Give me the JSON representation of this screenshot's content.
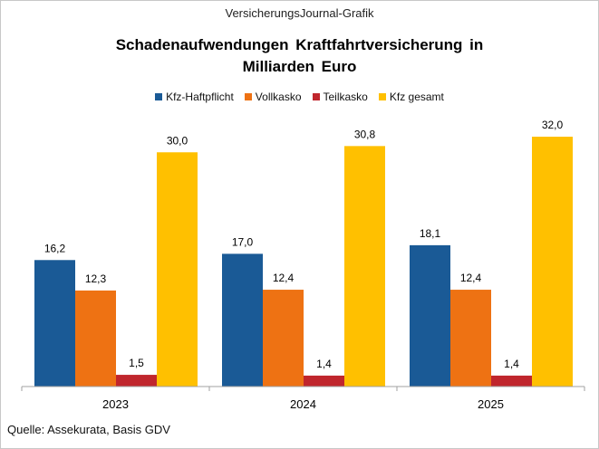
{
  "header": {
    "caption": "VersicherungsJournal-Grafik"
  },
  "chart_data": {
    "type": "bar",
    "title": "Schadenaufwendungen Kraftfahrtversicherung in Milliarden Euro",
    "title_lines": [
      "Schadenaufwendungen Kraftfahrtversicherung in",
      "Milliarden Euro"
    ],
    "categories": [
      "2023",
      "2024",
      "2025"
    ],
    "series": [
      {
        "name": "Kfz-Haftpflicht",
        "color": "#1a5a96",
        "values": [
          16.2,
          17.0,
          18.1
        ],
        "labels": [
          "16,2",
          "17,0",
          "18,1"
        ]
      },
      {
        "name": "Vollkasko",
        "color": "#ee7213",
        "values": [
          12.3,
          12.4,
          12.4
        ],
        "labels": [
          "12,3",
          "12,4",
          "12,4"
        ]
      },
      {
        "name": "Teilkasko",
        "color": "#c0262d",
        "values": [
          1.5,
          1.4,
          1.4
        ],
        "labels": [
          "1,5",
          "1,4",
          "1,4"
        ]
      },
      {
        "name": "Kfz gesamt",
        "color": "#ffc000",
        "values": [
          30.0,
          30.8,
          32.0
        ],
        "labels": [
          "30,0",
          "30,8",
          "32,0"
        ]
      }
    ],
    "ylim": [
      0,
      32.0
    ],
    "legend_position": "top",
    "grid": false
  },
  "footer": {
    "source": "Quelle: Assekurata, Basis GDV"
  }
}
